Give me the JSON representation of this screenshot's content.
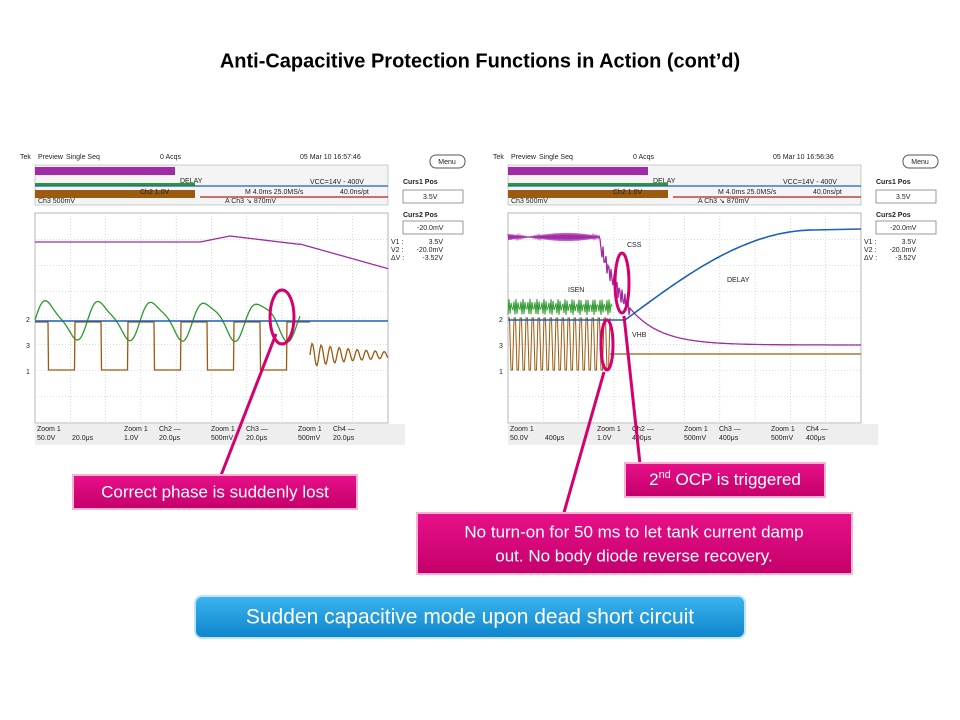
{
  "title": "Anti-Capacitive Protection Functions in Action (cont’d)",
  "scopes": [
    {
      "status": [
        "Tek",
        "Preview",
        "Single Seq",
        "0 Acqs",
        "05 Mar 10 16:57:46"
      ],
      "menu": "Menu",
      "info": [
        "DELAY",
        "VCC=14V - 400V",
        "Ch2  1.0V",
        "M 4.0ms 25.0MS/s",
        "40.0ns/pt",
        "Ch3    500mV",
        "A  Ch3 ↘ 870mV"
      ],
      "markers": [
        "2",
        "3",
        "1"
      ],
      "trace_labels": [],
      "cursors": {
        "curs1_label": "Curs1 Pos",
        "curs1_value": "3.5V",
        "curs2_label": "Curs2 Pos",
        "curs2_value": "-20.0mV",
        "readout": [
          [
            "V1 :",
            "3.5V"
          ],
          [
            "V2 :",
            "-20.0mV"
          ],
          [
            "ΔV :",
            "-3.52V"
          ]
        ]
      },
      "zoom": [
        {
          "zoom": "Zoom 1",
          "scale": "50.0V",
          "time": "20.0μs"
        },
        {
          "zoom": "Zoom 1",
          "ch": "Ch2 —",
          "scale": "1.0V",
          "time": "20.0μs"
        },
        {
          "zoom": "Zoom 1",
          "ch": "Ch3 —",
          "scale": "500mV",
          "time": "20.0μs"
        },
        {
          "zoom": "Zoom 1",
          "ch": "Ch4 —",
          "scale": "500mV",
          "time": "20.0μs"
        }
      ]
    },
    {
      "status": [
        "Tek",
        "Preview",
        "Single Seq",
        "0 Acqs",
        "05 Mar 10 16:56:36"
      ],
      "menu": "Menu",
      "info": [
        "DELAY",
        "VCC=14V - 400V",
        "Ch2  1.0V",
        "M 4.0ms 25.0MS/s",
        "40.0ns/pt",
        "Ch3    500mV",
        "A  Ch3 ↘ 870mV"
      ],
      "markers": [
        "2",
        "3",
        "1"
      ],
      "trace_labels": [
        "CSS",
        "ISEN",
        "DELAY",
        "VHB"
      ],
      "cursors": {
        "curs1_label": "Curs1 Pos",
        "curs1_value": "3.5V",
        "curs2_label": "Curs2 Pos",
        "curs2_value": "-20.0mV",
        "readout": [
          [
            "V1 :",
            "3.5V"
          ],
          [
            "V2 :",
            "-20.0mV"
          ],
          [
            "ΔV :",
            "-3.52V"
          ]
        ]
      },
      "zoom": [
        {
          "zoom": "Zoom 1",
          "scale": "50.0V",
          "time": "400μs"
        },
        {
          "zoom": "Zoom 1",
          "ch": "Ch2 —",
          "scale": "1.0V",
          "time": "400μs"
        },
        {
          "zoom": "Zoom 1",
          "ch": "Ch3 —",
          "scale": "500mV",
          "time": "400μs"
        },
        {
          "zoom": "Zoom 1",
          "ch": "Ch4 —",
          "scale": "500mV",
          "time": "400μs"
        }
      ]
    }
  ],
  "callouts": {
    "phase": "Correct phase is suddenly lost",
    "ocp": [
      "2",
      "nd",
      " OCP is triggered"
    ],
    "no_turn_on": [
      "No turn-on for 50 ms to let tank current damp",
      "out. No body diode reverse recovery."
    ]
  },
  "banner": "Sudden capacitive mode upon dead short circuit"
}
